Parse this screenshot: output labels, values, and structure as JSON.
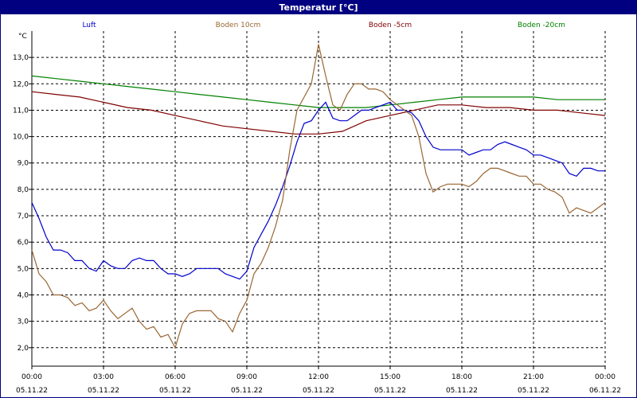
{
  "window": {
    "title": "Temperatur [°C]"
  },
  "chart_data": {
    "type": "line",
    "title": "Temperatur [°C]",
    "ylabel": "°C",
    "ylim": [
      1.3,
      14.0
    ],
    "y_ticks": [
      "2,0",
      "3,0",
      "4,0",
      "5,0",
      "6,0",
      "7,0",
      "8,0",
      "9,0",
      "10,0",
      "11,0",
      "12,0",
      "13,0"
    ],
    "y_tick_values": [
      2,
      3,
      4,
      5,
      6,
      7,
      8,
      9,
      10,
      11,
      12,
      13
    ],
    "xlim": [
      0,
      24
    ],
    "x_ticks": [
      {
        "time": "00:00",
        "date": "05.11.22"
      },
      {
        "time": "03:00",
        "date": "05.11.22"
      },
      {
        "time": "06:00",
        "date": "05.11.22"
      },
      {
        "time": "09:00",
        "date": "05.11.22"
      },
      {
        "time": "12:00",
        "date": "05.11.22"
      },
      {
        "time": "15:00",
        "date": "05.11.22"
      },
      {
        "time": "18:00",
        "date": "05.11.22"
      },
      {
        "time": "21:00",
        "date": "05.11.22"
      },
      {
        "time": "00:00",
        "date": "06.11.22"
      }
    ],
    "x_tick_hours": [
      0,
      3,
      6,
      9,
      12,
      15,
      18,
      21,
      24
    ],
    "grid": true,
    "legend_position": "top",
    "series": [
      {
        "name": "Luft",
        "color": "#0000cc",
        "x": [
          0,
          0.3,
          0.6,
          0.9,
          1.2,
          1.5,
          1.8,
          2.1,
          2.4,
          2.7,
          3.0,
          3.3,
          3.6,
          3.9,
          4.2,
          4.5,
          4.8,
          5.1,
          5.4,
          5.7,
          6.0,
          6.3,
          6.6,
          6.9,
          7.2,
          7.5,
          7.8,
          8.1,
          8.4,
          8.7,
          9.0,
          9.3,
          9.6,
          9.9,
          10.2,
          10.5,
          10.8,
          11.1,
          11.4,
          11.7,
          12.0,
          12.3,
          12.6,
          12.9,
          13.2,
          13.5,
          13.8,
          14.1,
          14.4,
          14.7,
          15.0,
          15.3,
          15.6,
          15.9,
          16.2,
          16.5,
          16.8,
          17.1,
          17.4,
          17.7,
          18.0,
          18.3,
          18.6,
          18.9,
          19.2,
          19.5,
          19.8,
          20.1,
          20.4,
          20.7,
          21.0,
          21.3,
          21.6,
          21.9,
          22.2,
          22.5,
          22.8,
          23.1,
          23.4,
          23.7,
          24.0
        ],
        "y": [
          7.5,
          6.9,
          6.2,
          5.7,
          5.7,
          5.6,
          5.3,
          5.3,
          5.0,
          4.9,
          5.3,
          5.1,
          5.0,
          5.0,
          5.3,
          5.4,
          5.3,
          5.3,
          5.0,
          4.8,
          4.8,
          4.7,
          4.8,
          5.0,
          5.0,
          5.0,
          5.0,
          4.8,
          4.7,
          4.6,
          4.9,
          5.8,
          6.3,
          6.8,
          7.4,
          8.1,
          8.9,
          9.8,
          10.5,
          10.6,
          11.0,
          11.3,
          10.7,
          10.6,
          10.6,
          10.8,
          11.0,
          11.0,
          11.1,
          11.2,
          11.3,
          11.0,
          11.0,
          10.9,
          10.6,
          10.0,
          9.6,
          9.5,
          9.5,
          9.5,
          9.5,
          9.3,
          9.4,
          9.5,
          9.5,
          9.7,
          9.8,
          9.7,
          9.6,
          9.5,
          9.3,
          9.3,
          9.2,
          9.1,
          9.0,
          8.6,
          8.5,
          8.8,
          8.8,
          8.7,
          8.7
        ]
      },
      {
        "name": "Boden 10cm",
        "color": "#996633",
        "x": [
          0,
          0.3,
          0.6,
          0.9,
          1.2,
          1.5,
          1.8,
          2.1,
          2.4,
          2.7,
          3.0,
          3.3,
          3.6,
          3.9,
          4.2,
          4.5,
          4.8,
          5.1,
          5.4,
          5.7,
          6.0,
          6.3,
          6.6,
          6.9,
          7.2,
          7.5,
          7.8,
          8.1,
          8.4,
          8.7,
          9.0,
          9.3,
          9.6,
          9.9,
          10.2,
          10.5,
          10.8,
          11.1,
          11.4,
          11.7,
          12.0,
          12.3,
          12.6,
          12.9,
          13.2,
          13.5,
          13.8,
          14.1,
          14.4,
          14.7,
          15.0,
          15.3,
          15.6,
          15.9,
          16.2,
          16.5,
          16.8,
          17.1,
          17.4,
          17.7,
          18.0,
          18.3,
          18.6,
          18.9,
          19.2,
          19.5,
          19.8,
          20.1,
          20.4,
          20.7,
          21.0,
          21.3,
          21.6,
          21.9,
          22.2,
          22.5,
          22.8,
          23.1,
          23.4,
          23.7,
          24.0
        ],
        "y": [
          5.7,
          4.8,
          4.5,
          4.0,
          4.0,
          3.9,
          3.6,
          3.7,
          3.4,
          3.5,
          3.8,
          3.4,
          3.1,
          3.3,
          3.5,
          3.0,
          2.7,
          2.8,
          2.4,
          2.5,
          2.0,
          2.9,
          3.3,
          3.4,
          3.4,
          3.4,
          3.1,
          3.0,
          2.6,
          3.3,
          3.8,
          4.8,
          5.2,
          5.8,
          6.6,
          7.6,
          9.5,
          11.0,
          11.5,
          12.0,
          13.5,
          12.3,
          11.2,
          11.0,
          11.6,
          12.0,
          12.0,
          11.8,
          11.8,
          11.7,
          11.4,
          11.2,
          11.0,
          10.8,
          10.0,
          8.6,
          7.9,
          8.1,
          8.2,
          8.2,
          8.2,
          8.1,
          8.3,
          8.6,
          8.8,
          8.8,
          8.7,
          8.6,
          8.5,
          8.5,
          8.2,
          8.2,
          8.0,
          7.9,
          7.7,
          7.1,
          7.3,
          7.2,
          7.1,
          7.3,
          7.5
        ]
      },
      {
        "name": "Boden -5cm",
        "color": "#800000",
        "x": [
          0,
          1,
          2,
          3,
          4,
          5,
          6,
          7,
          8,
          9,
          10,
          11,
          12,
          13,
          14,
          15,
          16,
          17,
          18,
          19,
          20,
          21,
          22,
          23,
          24
        ],
        "y": [
          11.7,
          11.6,
          11.5,
          11.3,
          11.1,
          11.0,
          10.8,
          10.6,
          10.4,
          10.3,
          10.2,
          10.1,
          10.1,
          10.2,
          10.6,
          10.8,
          11.0,
          11.2,
          11.2,
          11.1,
          11.1,
          11.0,
          11.0,
          10.9,
          10.8
        ]
      },
      {
        "name": "Boden -20cm",
        "color": "#008000",
        "x": [
          0,
          1,
          2,
          3,
          4,
          5,
          6,
          7,
          8,
          9,
          10,
          11,
          12,
          13,
          14,
          15,
          16,
          17,
          18,
          19,
          20,
          21,
          22,
          23,
          24
        ],
        "y": [
          12.3,
          12.2,
          12.1,
          12.0,
          11.9,
          11.8,
          11.7,
          11.6,
          11.5,
          11.4,
          11.3,
          11.2,
          11.1,
          11.1,
          11.1,
          11.2,
          11.3,
          11.4,
          11.5,
          11.5,
          11.5,
          11.5,
          11.4,
          11.4,
          11.4
        ]
      }
    ]
  }
}
